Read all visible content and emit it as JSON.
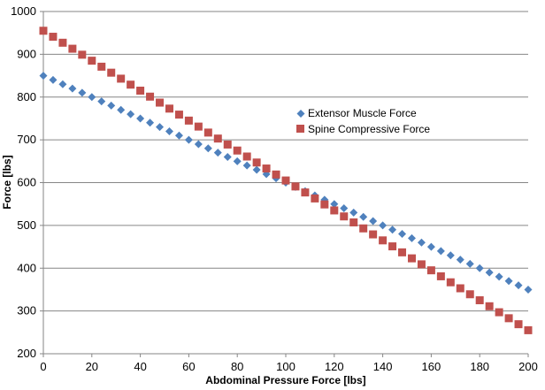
{
  "chart_data": {
    "type": "scatter",
    "title": "",
    "xlabel": "Abdominal Pressure Force [lbs]",
    "ylabel": "Force [lbs]",
    "xlim": [
      0,
      200
    ],
    "ylim": [
      200,
      1000
    ],
    "x_ticks": [
      "0",
      "20",
      "40",
      "60",
      "80",
      "100",
      "120",
      "140",
      "160",
      "180",
      "200"
    ],
    "y_ticks": [
      "200",
      "300",
      "400",
      "500",
      "600",
      "700",
      "800",
      "900",
      "1000"
    ],
    "grid": "horizontal",
    "legend_position": "center-right",
    "series": [
      {
        "name": "Extensor Muscle Force",
        "marker": "diamond",
        "color": "#4F81BD",
        "x_start": 0,
        "x_step": 4,
        "x_end": 200,
        "y_at_x_start": 850,
        "y_at_x_end": 350
      },
      {
        "name": "Spine Compressive Force",
        "marker": "square",
        "color": "#C0504D",
        "x_start": 0,
        "x_step": 4,
        "x_end": 200,
        "y_at_x_start": 955,
        "y_at_x_end": 255
      }
    ]
  }
}
